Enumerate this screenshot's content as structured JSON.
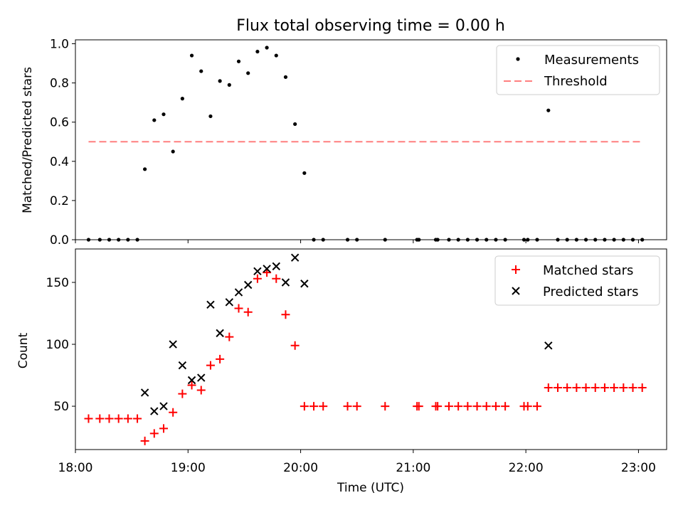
{
  "title": "Flux total observing time = 0.00 h",
  "colors": {
    "measurements": "#000000",
    "threshold": "#ff7f7f",
    "matched": "#ff0000",
    "predicted": "#000000"
  },
  "chart_data": [
    {
      "type": "scatter",
      "panel": "top",
      "ylabel": "Matched/Predicted stars",
      "xlim": [
        "18:00",
        "23:15"
      ],
      "ylim": [
        0,
        1.02
      ],
      "yticks": [
        0.0,
        0.2,
        0.4,
        0.6,
        0.8,
        1.0
      ],
      "ytick_labels": [
        "0.0",
        "0.2",
        "0.4",
        "0.6",
        "0.8",
        "1.0"
      ],
      "legend": "top-right",
      "series": [
        {
          "name": "Measurements",
          "marker": "dot",
          "points": [
            [
              "18:07",
              0
            ],
            [
              "18:13",
              0
            ],
            [
              "18:18",
              0
            ],
            [
              "18:23",
              0
            ],
            [
              "18:28",
              0
            ],
            [
              "18:33",
              0
            ],
            [
              "18:37",
              0.36
            ],
            [
              "18:42",
              0.61
            ],
            [
              "18:47",
              0.64
            ],
            [
              "18:52",
              0.45
            ],
            [
              "18:57",
              0.72
            ],
            [
              "19:02",
              0.94
            ],
            [
              "19:07",
              0.86
            ],
            [
              "19:12",
              0.63
            ],
            [
              "19:17",
              0.81
            ],
            [
              "19:22",
              0.79
            ],
            [
              "19:27",
              0.91
            ],
            [
              "19:32",
              0.85
            ],
            [
              "19:37",
              0.96
            ],
            [
              "19:42",
              0.98
            ],
            [
              "19:47",
              0.94
            ],
            [
              "19:52",
              0.83
            ],
            [
              "19:57",
              0.59
            ],
            [
              "20:02",
              0.34
            ],
            [
              "20:07",
              0
            ],
            [
              "20:12",
              0
            ],
            [
              "20:25",
              0
            ],
            [
              "20:30",
              0
            ],
            [
              "20:45",
              0
            ],
            [
              "21:02",
              0
            ],
            [
              "21:03",
              0
            ],
            [
              "21:12",
              0
            ],
            [
              "21:13",
              0
            ],
            [
              "21:19",
              0
            ],
            [
              "21:24",
              0
            ],
            [
              "21:29",
              0
            ],
            [
              "21:34",
              0
            ],
            [
              "21:39",
              0
            ],
            [
              "21:44",
              0
            ],
            [
              "21:49",
              0
            ],
            [
              "21:59",
              0
            ],
            [
              "22:01",
              0
            ],
            [
              "22:06",
              0
            ],
            [
              "22:12",
              0.66
            ],
            [
              "22:17",
              0
            ],
            [
              "22:22",
              0
            ],
            [
              "22:27",
              0
            ],
            [
              "22:32",
              0
            ],
            [
              "22:37",
              0
            ],
            [
              "22:42",
              0
            ],
            [
              "22:47",
              0
            ],
            [
              "22:52",
              0
            ],
            [
              "22:57",
              0
            ],
            [
              "23:02",
              0
            ]
          ]
        },
        {
          "name": "Threshold",
          "style": "dashed",
          "points": [
            [
              "18:07",
              0.5
            ],
            [
              "23:02",
              0.5
            ]
          ]
        }
      ]
    },
    {
      "type": "scatter",
      "panel": "bottom",
      "xlabel": "Time (UTC)",
      "ylabel": "Count",
      "xlim": [
        "18:00",
        "23:15"
      ],
      "ylim": [
        15,
        177
      ],
      "xticks": [
        "18:00",
        "19:00",
        "20:00",
        "21:00",
        "22:00",
        "23:00"
      ],
      "yticks": [
        50,
        100,
        150
      ],
      "ytick_labels": [
        "50",
        "100",
        "150"
      ],
      "legend": "top-right",
      "series": [
        {
          "name": "Matched stars",
          "marker": "plus",
          "points": [
            [
              "18:07",
              40
            ],
            [
              "18:13",
              40
            ],
            [
              "18:18",
              40
            ],
            [
              "18:23",
              40
            ],
            [
              "18:28",
              40
            ],
            [
              "18:33",
              40
            ],
            [
              "18:37",
              22
            ],
            [
              "18:42",
              28
            ],
            [
              "18:47",
              32
            ],
            [
              "18:52",
              45
            ],
            [
              "18:57",
              60
            ],
            [
              "19:02",
              67
            ],
            [
              "19:07",
              63
            ],
            [
              "19:12",
              83
            ],
            [
              "19:17",
              88
            ],
            [
              "19:22",
              106
            ],
            [
              "19:27",
              129
            ],
            [
              "19:32",
              126
            ],
            [
              "19:37",
              153
            ],
            [
              "19:42",
              158
            ],
            [
              "19:47",
              153
            ],
            [
              "19:52",
              124
            ],
            [
              "19:57",
              99
            ],
            [
              "20:02",
              50
            ],
            [
              "20:07",
              50
            ],
            [
              "20:12",
              50
            ],
            [
              "20:25",
              50
            ],
            [
              "20:30",
              50
            ],
            [
              "20:45",
              50
            ],
            [
              "21:02",
              50
            ],
            [
              "21:03",
              50
            ],
            [
              "21:12",
              50
            ],
            [
              "21:13",
              50
            ],
            [
              "21:19",
              50
            ],
            [
              "21:24",
              50
            ],
            [
              "21:29",
              50
            ],
            [
              "21:34",
              50
            ],
            [
              "21:39",
              50
            ],
            [
              "21:44",
              50
            ],
            [
              "21:49",
              50
            ],
            [
              "21:59",
              50
            ],
            [
              "22:01",
              50
            ],
            [
              "22:06",
              50
            ],
            [
              "22:12",
              65
            ],
            [
              "22:17",
              65
            ],
            [
              "22:22",
              65
            ],
            [
              "22:27",
              65
            ],
            [
              "22:32",
              65
            ],
            [
              "22:37",
              65
            ],
            [
              "22:42",
              65
            ],
            [
              "22:47",
              65
            ],
            [
              "22:52",
              65
            ],
            [
              "22:57",
              65
            ],
            [
              "23:02",
              65
            ]
          ]
        },
        {
          "name": "Predicted stars",
          "marker": "x",
          "points": [
            [
              "18:37",
              61
            ],
            [
              "18:42",
              46
            ],
            [
              "18:47",
              50
            ],
            [
              "18:52",
              100
            ],
            [
              "18:57",
              83
            ],
            [
              "19:02",
              71
            ],
            [
              "19:07",
              73
            ],
            [
              "19:12",
              132
            ],
            [
              "19:17",
              109
            ],
            [
              "19:22",
              134
            ],
            [
              "19:27",
              142
            ],
            [
              "19:32",
              148
            ],
            [
              "19:37",
              159
            ],
            [
              "19:42",
              161
            ],
            [
              "19:47",
              163
            ],
            [
              "19:52",
              150
            ],
            [
              "19:57",
              170
            ],
            [
              "20:02",
              149
            ],
            [
              "22:12",
              99
            ]
          ]
        }
      ]
    }
  ]
}
